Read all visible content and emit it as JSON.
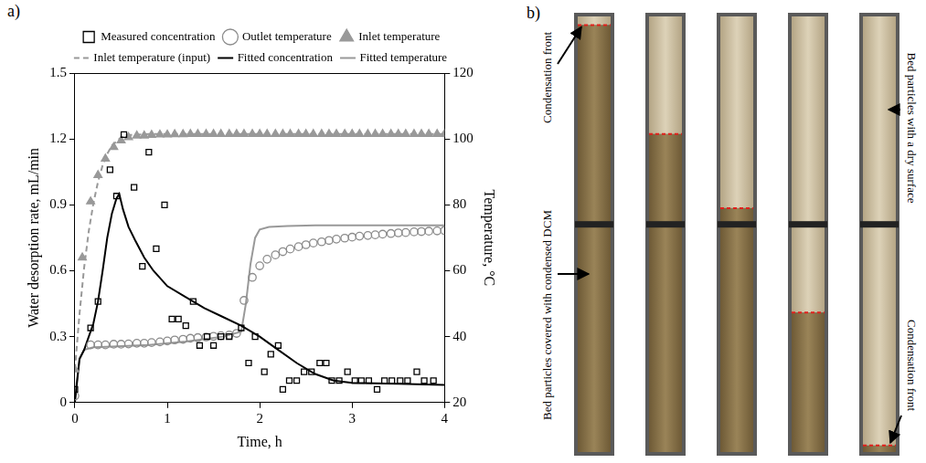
{
  "chart_data": {
    "type": "scatter",
    "x_label": "Time, h",
    "y_label": "Water desorption rate, mL/min",
    "y2_label": "Temperature, °C",
    "xlim": [
      0,
      4
    ],
    "xticks": [
      0,
      1,
      2,
      3,
      4
    ],
    "ylim": [
      0,
      1.5
    ],
    "yticks": [
      0,
      0.3,
      0.6,
      0.9,
      1.2,
      1.5
    ],
    "y2lim": [
      20,
      120
    ],
    "y2ticks": [
      20,
      40,
      60,
      80,
      100,
      120
    ],
    "grid": false,
    "legend": "top",
    "series": [
      {
        "name": "Measured concentration",
        "type": "scatter",
        "marker": "square",
        "color": "#000000",
        "x": [
          0,
          0.17,
          0.25,
          0.38,
          0.45,
          0.53,
          0.64,
          0.73,
          0.8,
          0.88,
          0.97,
          1.05,
          1.12,
          1.2,
          1.28,
          1.35,
          1.43,
          1.5,
          1.58,
          1.67,
          1.8,
          1.88,
          1.95,
          2.05,
          2.12,
          2.2,
          2.25,
          2.32,
          2.4,
          2.48,
          2.56,
          2.65,
          2.72,
          2.78,
          2.86,
          2.95,
          3.03,
          3.1,
          3.18,
          3.27,
          3.35,
          3.43,
          3.52,
          3.6,
          3.7,
          3.78,
          3.88
        ],
        "values": [
          0.06,
          0.34,
          0.46,
          1.06,
          0.94,
          1.22,
          0.98,
          0.62,
          1.14,
          0.7,
          0.9,
          0.38,
          0.38,
          0.35,
          0.46,
          0.26,
          0.3,
          0.26,
          0.3,
          0.3,
          0.34,
          0.18,
          0.3,
          0.14,
          0.22,
          0.26,
          0.06,
          0.1,
          0.1,
          0.14,
          0.14,
          0.18,
          0.18,
          0.1,
          0.1,
          0.14,
          0.1,
          0.1,
          0.1,
          0.06,
          0.1,
          0.1,
          0.1,
          0.1,
          0.14,
          0.1,
          0.1
        ]
      },
      {
        "name": "Outlet temperature",
        "type": "scatter",
        "marker": "circle",
        "color": "#8c8c8c",
        "axis": "y2",
        "x": [
          0,
          0.17,
          0.25,
          0.33,
          0.42,
          0.5,
          0.58,
          0.67,
          0.75,
          0.83,
          0.92,
          1,
          1.08,
          1.17,
          1.25,
          1.33,
          1.42,
          1.5,
          1.58,
          1.67,
          1.75,
          1.83,
          1.92,
          2,
          2.08,
          2.17,
          2.25,
          2.33,
          2.42,
          2.5,
          2.58,
          2.67,
          2.75,
          2.83,
          2.92,
          3,
          3.08,
          3.17,
          3.25,
          3.33,
          3.42,
          3.5,
          3.58,
          3.67,
          3.75,
          3.83,
          3.92,
          4
        ],
        "values": [
          22,
          37.5,
          37.5,
          37.5,
          37.7,
          37.7,
          37.8,
          38,
          38,
          38.2,
          38.4,
          38.7,
          39,
          39.2,
          39.5,
          39.7,
          39.9,
          40.1,
          40.3,
          40.5,
          41,
          51,
          58,
          61.5,
          63.5,
          64.8,
          65.8,
          66.6,
          67.3,
          67.9,
          68.4,
          68.8,
          69.2,
          69.6,
          69.9,
          70.2,
          70.5,
          70.7,
          70.9,
          71.1,
          71.3,
          71.5,
          71.6,
          71.8,
          71.9,
          72,
          72.1,
          72.2
        ]
      },
      {
        "name": "Inlet temperature",
        "type": "scatter",
        "marker": "filled_triangle",
        "color": "#999999",
        "axis": "y2",
        "x": [
          0,
          0.08,
          0.17,
          0.25,
          0.33,
          0.42,
          0.5,
          0.58,
          0.67,
          0.75,
          0.83,
          0.92,
          1,
          1.08,
          1.17,
          1.25,
          1.33,
          1.42,
          1.5,
          1.58,
          1.67,
          1.75,
          1.83,
          1.92,
          2,
          2.08,
          2.17,
          2.25,
          2.33,
          2.42,
          2.5,
          2.58,
          2.67,
          2.75,
          2.83,
          2.92,
          3,
          3.08,
          3.17,
          3.25,
          3.33,
          3.42,
          3.5,
          3.58,
          3.67,
          3.75,
          3.83,
          3.92,
          4
        ],
        "values": [
          30,
          64,
          81,
          89,
          94,
          97.5,
          99.5,
          100.5,
          101,
          101,
          101.2,
          101.3,
          101.3,
          101.4,
          101.4,
          101.5,
          101.5,
          101.5,
          101.5,
          101.5,
          101.5,
          101.5,
          101.5,
          101.5,
          101.5,
          101.5,
          101.5,
          101.5,
          101.5,
          101.5,
          101.5,
          101.5,
          101.5,
          101.5,
          101.5,
          101.5,
          101.5,
          101.5,
          101.5,
          101.5,
          101.5,
          101.5,
          101.5,
          101.5,
          101.5,
          101.5,
          101.5,
          101.5,
          101.5
        ]
      },
      {
        "name": "Inlet temperature (input)",
        "type": "line",
        "line_style": "dashed",
        "color": "#999999",
        "axis": "y2",
        "x": [
          0,
          0.05,
          0.1,
          0.15,
          0.2,
          0.25,
          0.3,
          0.35,
          0.4,
          0.5,
          0.6,
          0.8,
          1,
          2,
          3,
          4
        ],
        "values": [
          30,
          47,
          61,
          72,
          80.5,
          87,
          92,
          95.5,
          98,
          100.5,
          101.2,
          101.5,
          101.5,
          101.5,
          101.5,
          101.5
        ]
      },
      {
        "name": "Fitted concentration",
        "type": "line",
        "line_style": "solid",
        "color": "#000000",
        "x": [
          0,
          0.05,
          0.1,
          0.15,
          0.2,
          0.25,
          0.3,
          0.35,
          0.4,
          0.45,
          0.48,
          0.52,
          0.58,
          0.65,
          0.75,
          0.85,
          1,
          1.2,
          1.4,
          1.6,
          1.8,
          2,
          2.2,
          2.4,
          2.6,
          2.8,
          3,
          3.5,
          4
        ],
        "values": [
          0,
          0.2,
          0.24,
          0.3,
          0.36,
          0.46,
          0.6,
          0.75,
          0.86,
          0.93,
          0.95,
          0.88,
          0.8,
          0.74,
          0.66,
          0.6,
          0.53,
          0.48,
          0.43,
          0.39,
          0.35,
          0.3,
          0.24,
          0.18,
          0.13,
          0.1,
          0.09,
          0.085,
          0.08
        ]
      },
      {
        "name": "Fitted temperature",
        "type": "line",
        "line_style": "solid",
        "color": "#999999",
        "axis": "y2",
        "x": [
          0,
          0.05,
          0.1,
          0.2,
          0.4,
          0.8,
          1.2,
          1.6,
          1.8,
          1.85,
          1.9,
          1.95,
          2,
          2.1,
          2.3,
          2.6,
          3,
          4
        ],
        "values": [
          22,
          33,
          36,
          36.8,
          37,
          37.5,
          38.5,
          40,
          41.5,
          50,
          62,
          70,
          72.5,
          73.3,
          73.6,
          73.8,
          73.8,
          73.8
        ]
      }
    ]
  },
  "panel_a": {
    "label": "a)"
  },
  "panel_b": {
    "label": "b)",
    "annotations": [
      {
        "text": "Condensation front",
        "side": "left"
      },
      {
        "text": "Bed particles covered with condensed DCM",
        "side": "left"
      },
      {
        "text": "Bed particles with a dry surface",
        "side": "right"
      },
      {
        "text": "Condensation front",
        "side": "right"
      }
    ]
  }
}
